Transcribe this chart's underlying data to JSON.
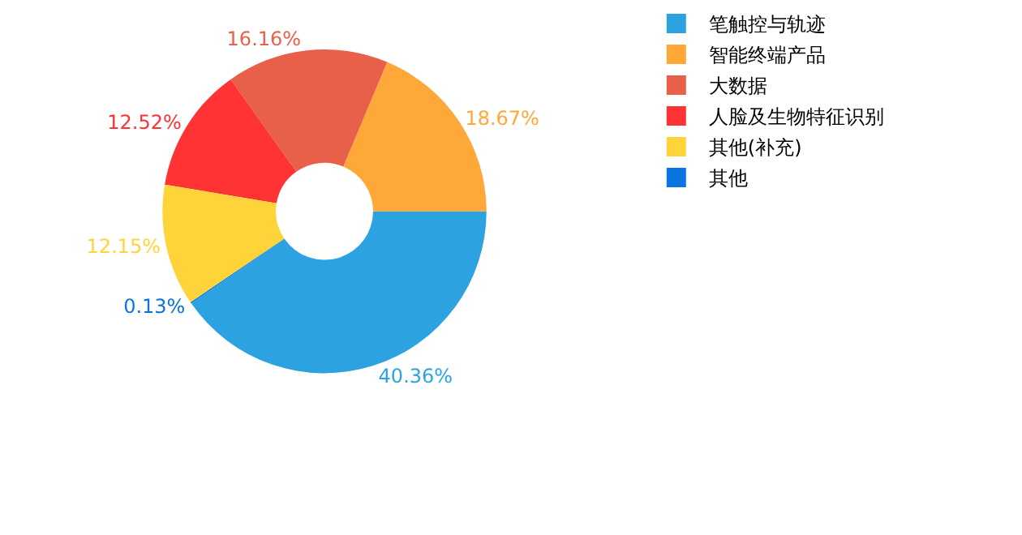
{
  "chart_data": {
    "type": "donut",
    "categories": [
      "笔触控与轨迹",
      "智能终端产品",
      "大数据",
      "人脸及生物特征识别",
      "其他(补充)",
      "其他"
    ],
    "values": [
      40.36,
      18.67,
      16.16,
      12.52,
      12.15,
      0.13
    ],
    "value_labels": [
      "40.36%",
      "18.67%",
      "16.16%",
      "12.52%",
      "12.15%",
      "0.13%"
    ],
    "colors": [
      "#2ca3e0",
      "#ffa83a",
      "#e8604a",
      "#ff3333",
      "#ffd43b",
      "#0a74e0"
    ],
    "legend": "top right"
  }
}
